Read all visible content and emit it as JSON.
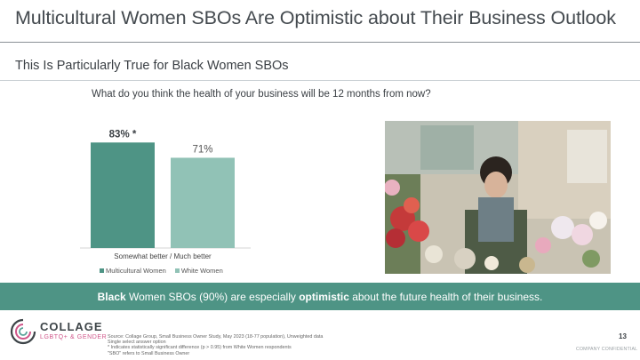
{
  "header": {
    "title": "Multicultural Women SBOs Are Optimistic about Their Business Outlook",
    "subtitle": "This Is Particularly True for Black Women SBOs"
  },
  "question": "What do you think the health of your business will be 12 months from now?",
  "chart_data": {
    "type": "bar",
    "title": "",
    "xlabel": "",
    "ylabel": "",
    "categories": [
      "Somewhat better / Much better"
    ],
    "series": [
      {
        "name": "Multicultural Women",
        "values": [
          83
        ],
        "label": "83% *",
        "color": "#4e9485"
      },
      {
        "name": "White Women",
        "values": [
          71
        ],
        "label": "71%",
        "color": "#91c2b6"
      }
    ],
    "ylim": [
      0,
      100
    ],
    "grid": false,
    "legend": "bottom-left"
  },
  "banner": {
    "bold1": "Black",
    "text1": " Women SBOs (90%) are especially ",
    "bold2": "optimistic",
    "text2": " about the future health of their business."
  },
  "logo": {
    "name": "COLLAGE",
    "tagline": "LGBTQ+ & GENDER"
  },
  "footnotes": [
    "Source: Collage Group, Small Business Owner Study, May 2023 (18-77 population), Unweighted data",
    "Single select answer option",
    "* Indicates statistically significant difference (p > 0.95) from White Women respondents",
    "\"SBO\" refers to Small Business Owner"
  ],
  "footer": {
    "page_number": "13",
    "confidential": "COMPANY CONFIDENTIAL"
  },
  "colors": {
    "accent": "#4e9485",
    "accent_light": "#91c2b6",
    "logo_pink": "#d0568a"
  }
}
